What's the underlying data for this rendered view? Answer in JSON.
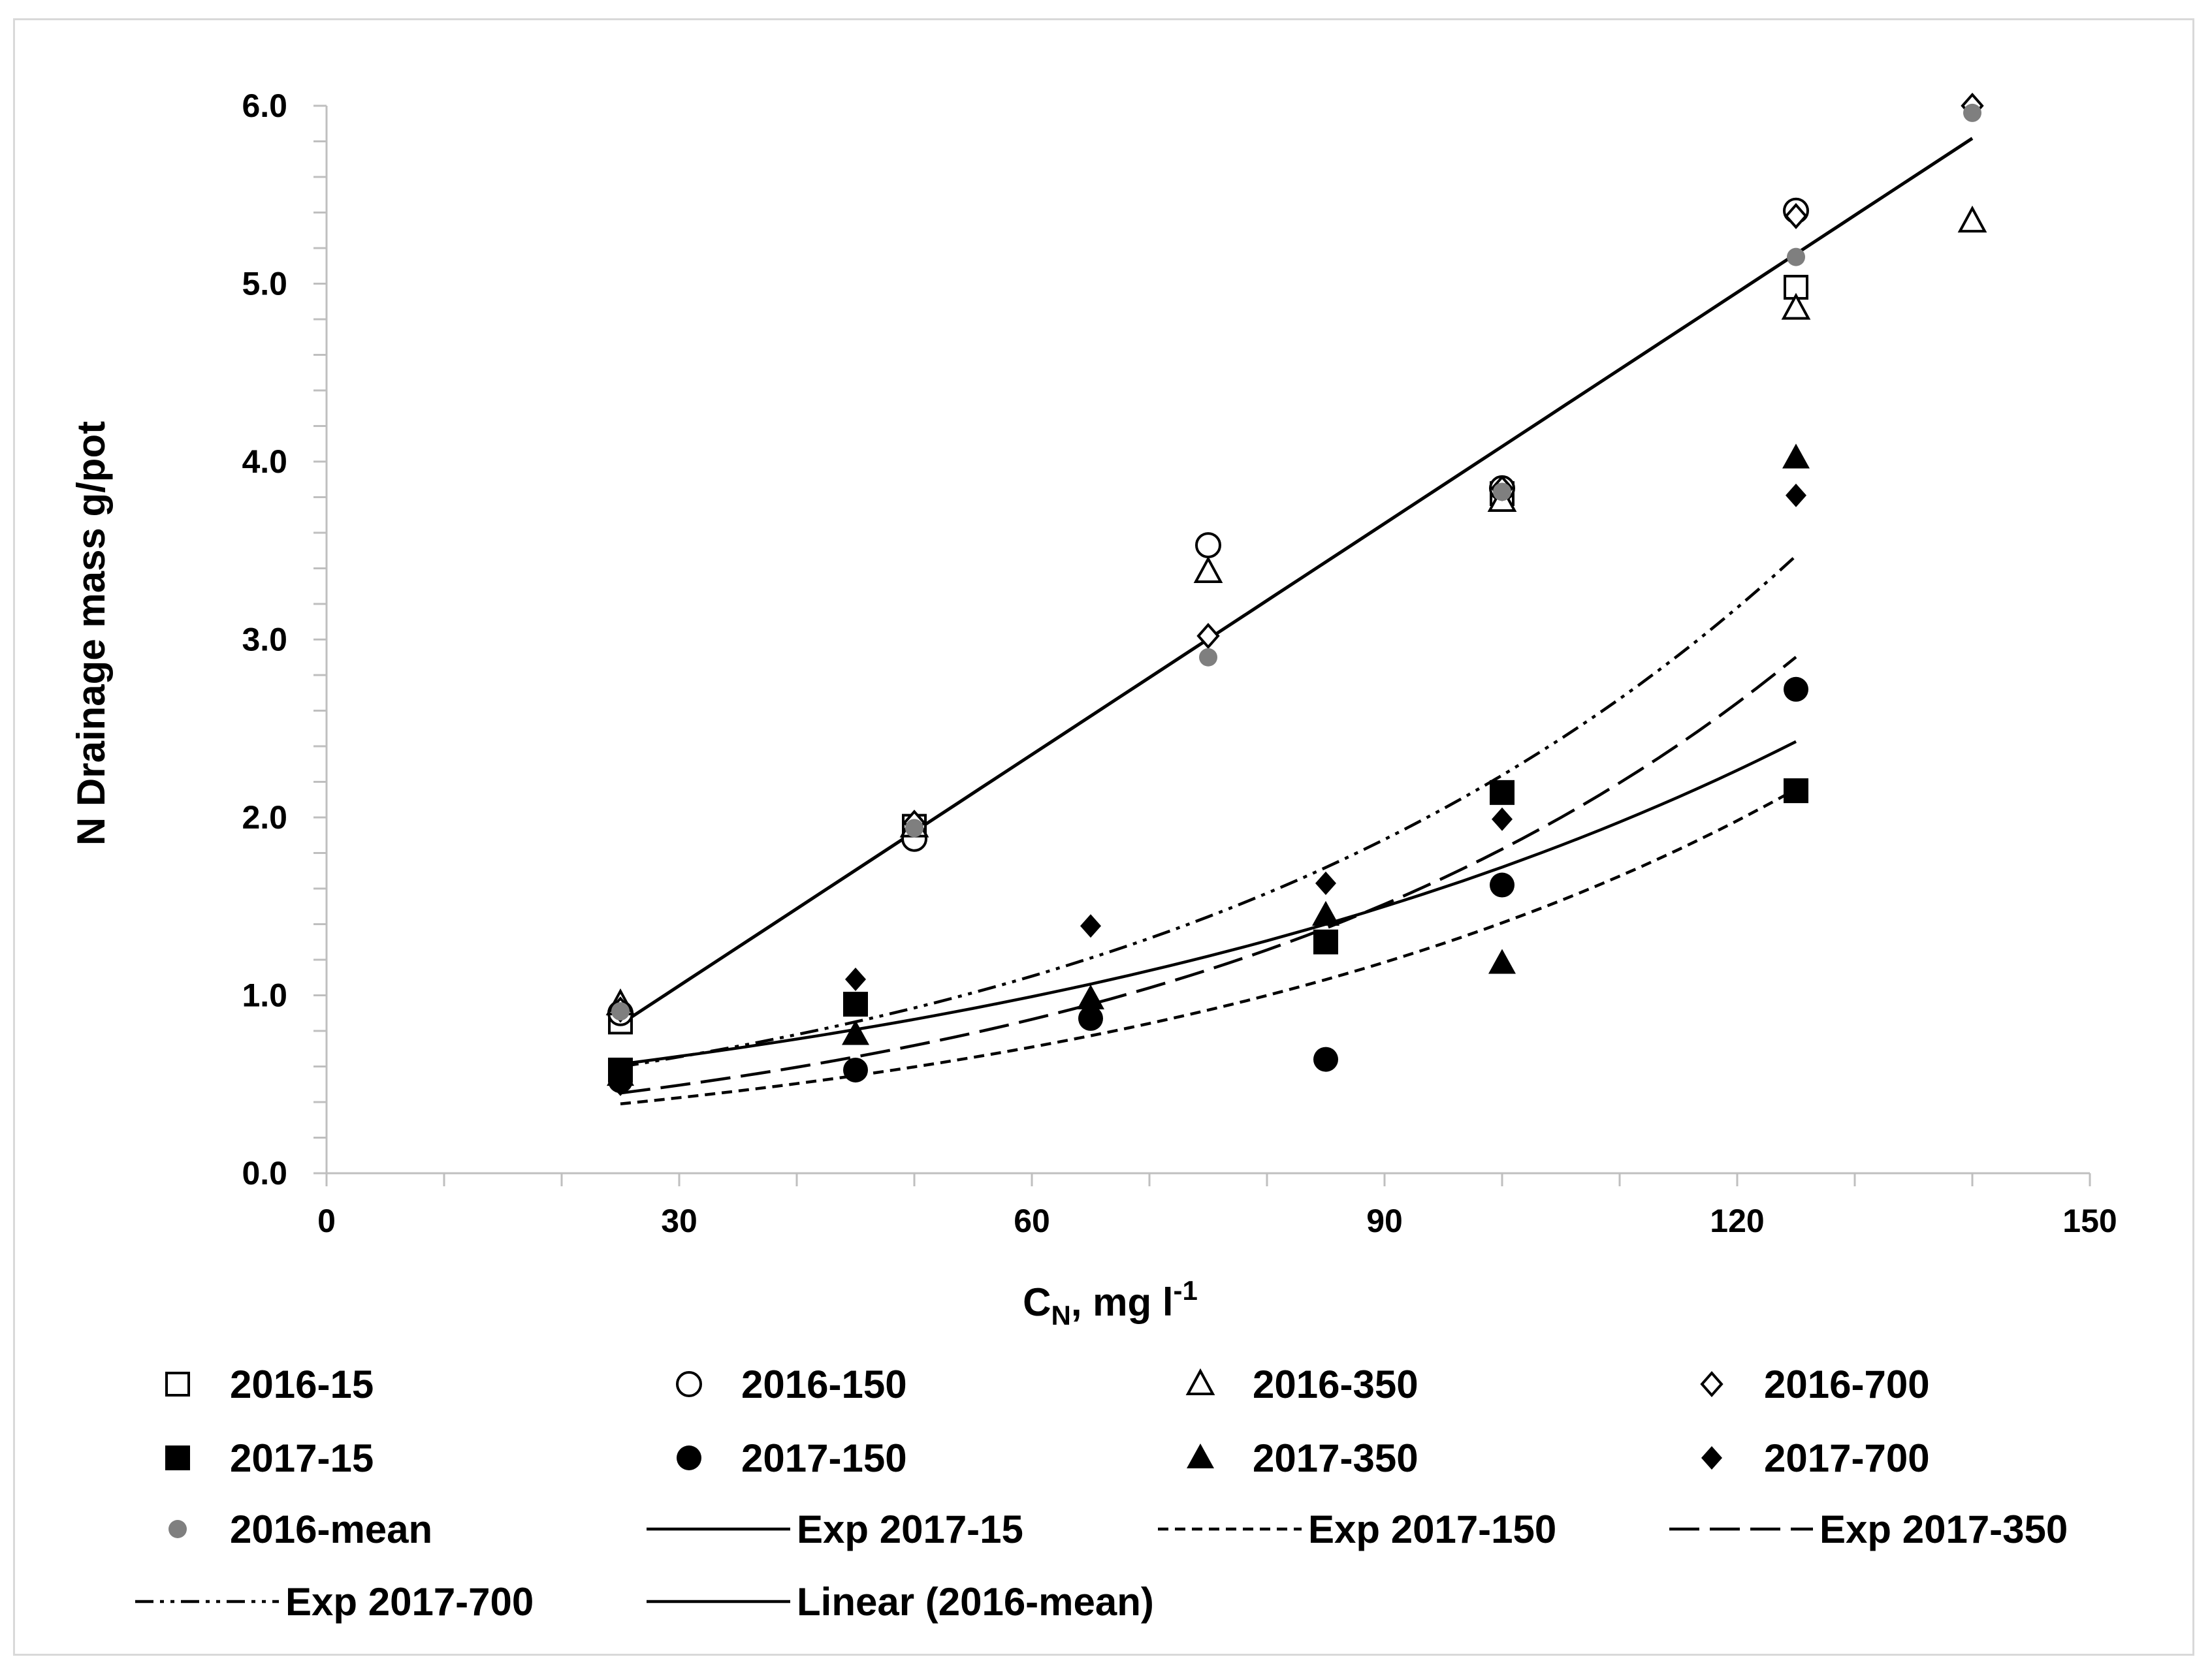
{
  "chart_data": {
    "type": "scatter",
    "title": "",
    "xlabel": "C",
    "xlabel_sub": "N",
    "xlabel_tail": ", mg l",
    "xlabel_sup": "-1",
    "ylabel": "N Drainage mass g/pot",
    "xlim": [
      0,
      150
    ],
    "ylim": [
      0,
      6.0
    ],
    "x_ticks": [
      0,
      30,
      60,
      90,
      120,
      150
    ],
    "y_ticks": [
      0.0,
      1.0,
      2.0,
      3.0,
      4.0,
      5.0,
      6.0
    ],
    "x_minor_step": 10,
    "y_minor_step": 0.2,
    "legend_position": "bottom",
    "series": [
      {
        "name": "2016-15",
        "marker": "square-open",
        "x": [
          25,
          50,
          100,
          125
        ],
        "y": [
          0.85,
          1.95,
          3.82,
          4.98
        ]
      },
      {
        "name": "2016-150",
        "marker": "circle-open",
        "x": [
          25,
          50,
          75,
          100,
          125
        ],
        "y": [
          0.9,
          1.88,
          3.53,
          3.85,
          5.41
        ]
      },
      {
        "name": "2016-350",
        "marker": "triangle-open",
        "x": [
          25,
          50,
          75,
          100,
          125,
          140
        ],
        "y": [
          0.95,
          1.95,
          3.38,
          3.78,
          4.86,
          5.35
        ]
      },
      {
        "name": "2016-700",
        "marker": "diamond-open",
        "x": [
          25,
          50,
          75,
          100,
          125,
          140
        ],
        "y": [
          0.92,
          1.97,
          3.02,
          3.85,
          5.38,
          6.0
        ]
      },
      {
        "name": "2017-15",
        "marker": "square-filled",
        "x": [
          25,
          45,
          85,
          100,
          125
        ],
        "y": [
          0.58,
          0.95,
          1.3,
          2.14,
          2.15
        ]
      },
      {
        "name": "2017-150",
        "marker": "circle-filled",
        "x": [
          25,
          45,
          65,
          85,
          100,
          125
        ],
        "y": [
          0.52,
          0.58,
          0.87,
          0.64,
          1.62,
          2.72
        ]
      },
      {
        "name": "2017-350",
        "marker": "triangle-filled",
        "x": [
          25,
          45,
          65,
          85,
          100,
          125
        ],
        "y": [
          0.55,
          0.78,
          0.98,
          1.45,
          1.18,
          4.02
        ]
      },
      {
        "name": "2017-700",
        "marker": "diamond-filled",
        "x": [
          25,
          45,
          65,
          85,
          100,
          125
        ],
        "y": [
          0.5,
          1.09,
          1.39,
          1.63,
          1.99,
          3.81
        ]
      },
      {
        "name": "2016-mean",
        "marker": "circle-gray",
        "color": "#7f7f7f",
        "x": [
          25,
          50,
          75,
          100,
          125,
          140
        ],
        "y": [
          0.91,
          1.94,
          2.9,
          3.83,
          5.15,
          5.96
        ]
      }
    ],
    "trendlines": [
      {
        "name": "Exp 2017-15",
        "type": "exponential",
        "dash": "solid",
        "x_range": [
          25,
          125
        ],
        "a": 0.435,
        "b": 0.01375
      },
      {
        "name": "Exp 2017-150",
        "type": "exponential",
        "dash": "short-dash",
        "x_range": [
          25,
          125
        ],
        "a": 0.254,
        "b": 0.01712
      },
      {
        "name": "Exp 2017-350",
        "type": "exponential",
        "dash": "long-dash",
        "x_range": [
          25,
          125
        ],
        "a": 0.283,
        "b": 0.01862
      },
      {
        "name": "Exp 2017-700",
        "type": "exponential",
        "dash": "dash-dot-dot",
        "x_range": [
          25,
          125
        ],
        "a": 0.386,
        "b": 0.01757
      },
      {
        "name": "Linear (2016-mean)",
        "type": "linear",
        "dash": "solid",
        "x_range": [
          25,
          140
        ],
        "slope": 0.0433,
        "intercept": -0.245
      }
    ],
    "line_color": "#000000"
  }
}
